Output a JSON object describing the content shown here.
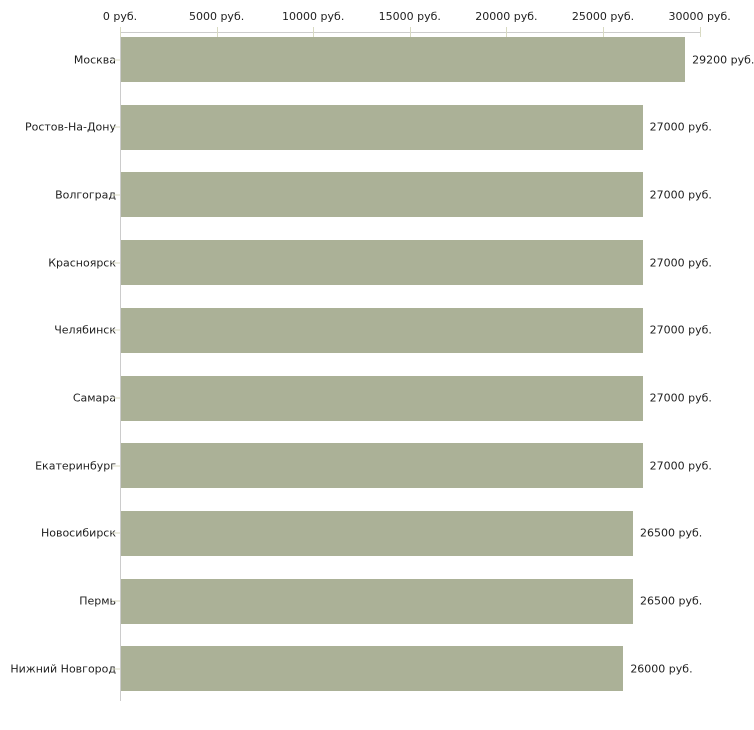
{
  "chart_data": {
    "type": "bar",
    "orientation": "horizontal",
    "categories": [
      "Москва",
      "Ростов-На-Дону",
      "Волгоград",
      "Красноярск",
      "Челябинск",
      "Самара",
      "Екатеринбург",
      "Новосибирск",
      "Пермь",
      "Нижний Новгород"
    ],
    "values": [
      29200,
      27000,
      27000,
      27000,
      27000,
      27000,
      27000,
      26500,
      26500,
      26000
    ],
    "value_labels": [
      "29200 руб.",
      "27000 руб.",
      "27000 руб.",
      "27000 руб.",
      "27000 руб.",
      "27000 руб.",
      "27000 руб.",
      "26500 руб.",
      "26500 руб.",
      "26000 руб."
    ],
    "x_axis": {
      "tick_values": [
        0,
        5000,
        10000,
        15000,
        20000,
        25000,
        30000
      ],
      "tick_labels": [
        "0 руб.",
        "5000 руб.",
        "10000 руб.",
        "15000 руб.",
        "20000 руб.",
        "25000 руб.",
        "30000 руб."
      ],
      "range": [
        0,
        30000
      ],
      "unit": "руб.",
      "position": "top"
    },
    "ylabel": "",
    "xlabel": "",
    "title": "",
    "grid": false,
    "legend": false,
    "colors": {
      "bar": "#abb197",
      "axis_line": "#cccccc",
      "tick_mark": "#d8dac2",
      "text": "#1f1f1f",
      "background": "#ffffff"
    }
  }
}
